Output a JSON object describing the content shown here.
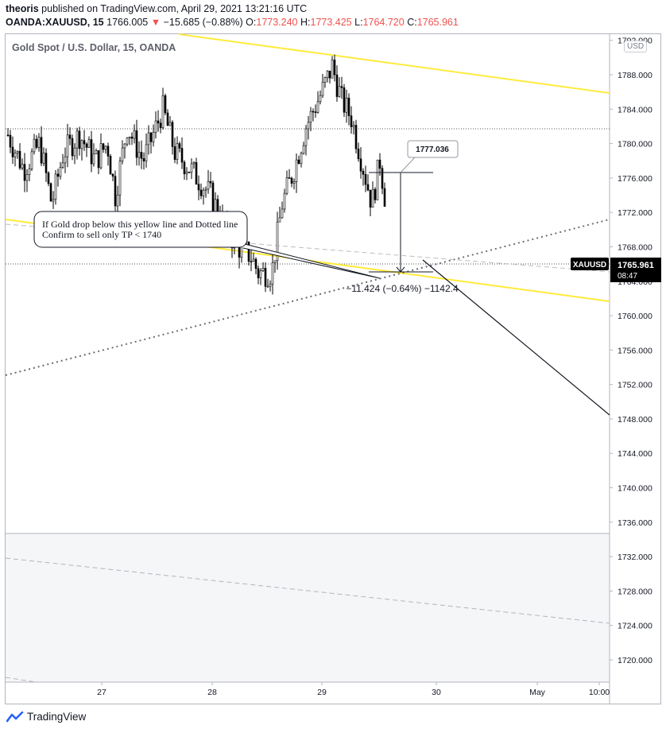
{
  "header": {
    "author": "theoris",
    "published": "published on TradingView.com, April 29, 2021 13:21:16 UTC",
    "symbol": "OANDA:XAUUSD, 15",
    "last": "1766.005",
    "down_arrow": "▼",
    "change": "−15.685 (−0.88%)",
    "o_label": "O:",
    "o_value": "1773.240",
    "h_label": "H:",
    "h_value": "1773.425",
    "l_label": "L:",
    "l_value": "1764.720",
    "c_label": "C:",
    "c_value": "1765.961"
  },
  "legend": "Gold Spot / U.S. Dollar, 15, OANDA",
  "currency_button": "USD",
  "price_axis": {
    "ticks": [
      "1792.000",
      "1788.000",
      "1784.000",
      "1780.000",
      "1776.000",
      "1772.000",
      "1768.000",
      "1764.000",
      "1760.000",
      "1756.000",
      "1752.000",
      "1748.000",
      "1744.000",
      "1740.000",
      "1736.000",
      "1732.000",
      "1728.000",
      "1724.000",
      "1720.000"
    ],
    "symbol_tag": "XAUUSD",
    "price_tag": "1765.961",
    "countdown": "08:47"
  },
  "time_axis": {
    "labels": [
      "27",
      "28",
      "29",
      "30",
      "May",
      "10:00"
    ]
  },
  "annotations": {
    "note_line1": "If Gold drop below this yellow line and Dotted line",
    "note_line2": "Confirm to sell only TP < 1740",
    "price_callout": "1777.036",
    "range_label": "−11.424 (−0.64%) −1142.4"
  },
  "colors": {
    "trendline": "#ffeb3b",
    "down": "#ef5350",
    "candle": "#000000",
    "price_tag_bg": "#000000",
    "axis_text": "#131722",
    "lower_pane_bg": "#f5f6f8"
  },
  "footer": {
    "brand": "TradingView"
  },
  "chart_data": {
    "type": "candlestick",
    "title": "Gold Spot / U.S. Dollar, 15, OANDA",
    "y_range": [
      1717,
      1793
    ],
    "x_labels": [
      "27",
      "28",
      "29",
      "30",
      "May",
      "10:00"
    ],
    "close_path_points": [
      [
        1781,
        1781
      ],
      [
        1781,
        1778
      ],
      [
        1778,
        1781
      ],
      [
        1781,
        1774
      ],
      [
        1774,
        1777
      ],
      [
        1777,
        1780
      ],
      [
        1780,
        1778
      ],
      [
        1778,
        1781
      ],
      [
        1781,
        1779
      ],
      [
        1779,
        1782
      ],
      [
        1782,
        1780
      ],
      [
        1780,
        1776
      ],
      [
        1776,
        1779
      ],
      [
        1779,
        1783
      ],
      [
        1783,
        1780
      ],
      [
        1780,
        1781
      ],
      [
        1781,
        1777
      ],
      [
        1777,
        1780
      ],
      [
        1780,
        1783
      ],
      [
        1783,
        1784
      ],
      [
        1784,
        1781
      ],
      [
        1781,
        1779
      ],
      [
        1779,
        1777
      ],
      [
        1777,
        1776
      ],
      [
        1776,
        1773
      ],
      [
        1773,
        1771
      ],
      [
        1771,
        1769
      ],
      [
        1769,
        1767
      ],
      [
        1767,
        1768
      ],
      [
        1768,
        1766
      ],
      [
        1766,
        1765
      ],
      [
        1765,
        1767
      ],
      [
        1767,
        1770
      ],
      [
        1770,
        1775
      ],
      [
        1775,
        1779
      ],
      [
        1779,
        1781
      ],
      [
        1781,
        1782
      ],
      [
        1782,
        1786
      ],
      [
        1786,
        1790
      ],
      [
        1790,
        1786
      ],
      [
        1786,
        1785
      ],
      [
        1785,
        1782
      ],
      [
        1782,
        1779
      ],
      [
        1779,
        1776
      ],
      [
        1776,
        1774
      ],
      [
        1774,
        1777
      ],
      [
        1777,
        1773
      ],
      [
        1773,
        1766
      ]
    ]
  }
}
